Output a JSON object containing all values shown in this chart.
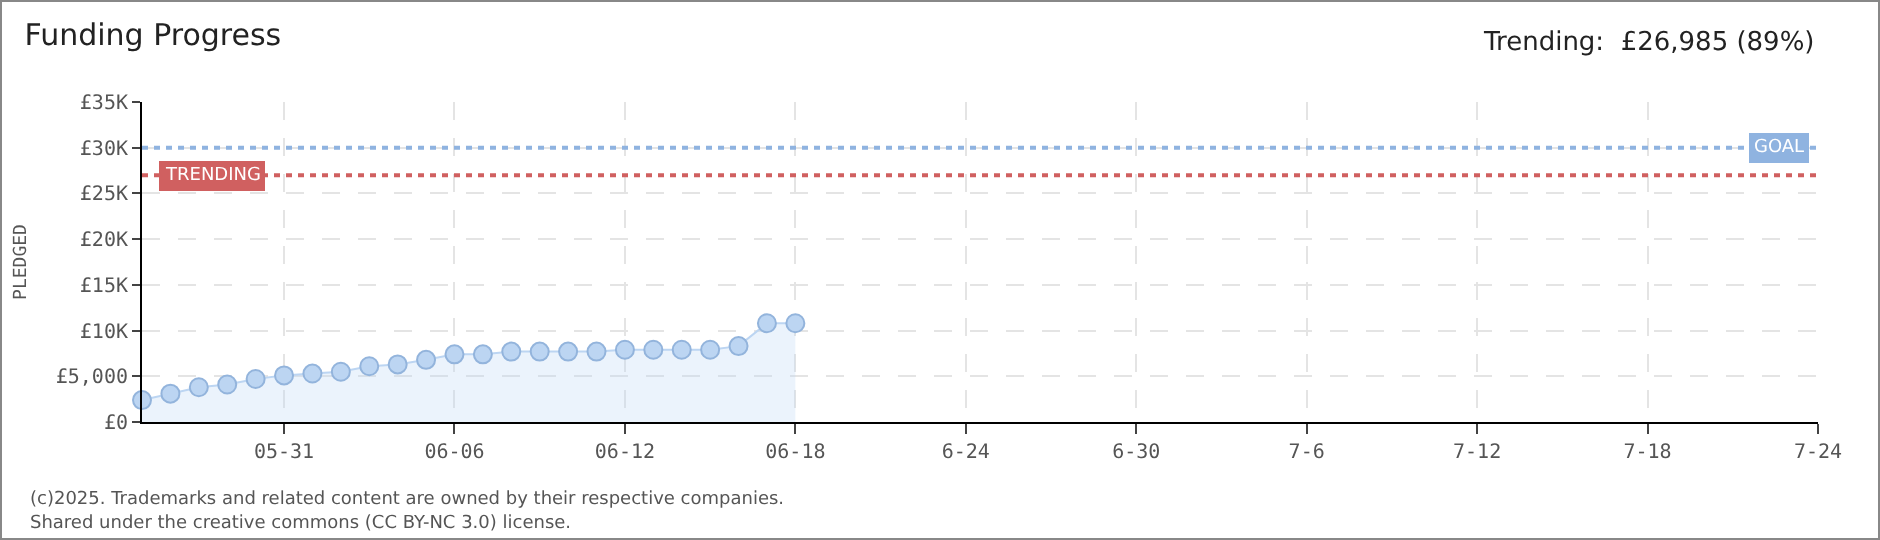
{
  "chart_data": {
    "type": "area",
    "title": "Funding Progress",
    "ylabel": "PLEDGED",
    "annotations": [
      "Trending:  £26,985 (89%)",
      "(c)2025. Trademarks and related content are owned by their respective companies.",
      "Shared under the creative commons (CC BY-NC 3.0) license."
    ],
    "x": [
      "--05-26",
      "--05-27",
      "--05-28",
      "--05-29",
      "--05-30",
      "--05-31",
      "--06-01",
      "--06-02",
      "--06-03",
      "--06-04",
      "--06-05",
      "--06-06",
      "--06-07",
      "--06-08",
      "--06-09",
      "--06-10",
      "--06-11",
      "--06-12",
      "--06-13",
      "--06-14",
      "--06-15",
      "--06-16",
      "--06-17",
      "--06-18"
    ],
    "series": [
      {
        "color": "#bcd5f2",
        "values": [
          2400,
          3100,
          3800,
          4100,
          4700,
          5100,
          5300,
          5500,
          6100,
          6300,
          6800,
          7400,
          7400,
          7700,
          7700,
          7700,
          7700,
          7900,
          7900,
          7900,
          7900,
          8300,
          10800,
          10800
        ]
      }
    ],
    "xlim": [
      "--05-26",
      "--07-24"
    ],
    "xticks": [
      {
        "value": "--05-31",
        "label": "05-31"
      },
      {
        "value": "--06-06",
        "label": "06-06"
      },
      {
        "value": "--06-12",
        "label": "06-12"
      },
      {
        "value": "--06-18",
        "label": "06-18"
      },
      {
        "value": "--06-24",
        "label": "6-24"
      },
      {
        "value": "--06-30",
        "label": "6-30"
      },
      {
        "value": "--07-06",
        "label": "7-6"
      },
      {
        "value": "--07-12",
        "label": "7-12"
      },
      {
        "value": "--07-18",
        "label": "7-18"
      },
      {
        "value": "--07-24",
        "label": "7-24"
      }
    ],
    "ylim": [
      0,
      35000
    ],
    "yticks": [
      {
        "value": 0,
        "label": "£0"
      },
      {
        "value": 5000,
        "label": "£5,000"
      },
      {
        "value": 10000,
        "label": "£10K"
      },
      {
        "value": 15000,
        "label": "£15K"
      },
      {
        "value": 20000,
        "label": "£20K"
      },
      {
        "value": 25000,
        "label": "£25K"
      },
      {
        "value": 30000,
        "label": "£30K"
      },
      {
        "value": 35000,
        "label": "£35K"
      }
    ],
    "ref_lines": [
      {
        "axis": "y",
        "value": 30000,
        "label": "GOAL",
        "color": "#8fb3e0",
        "line_style": "dotted"
      },
      {
        "axis": "y",
        "value": 26985,
        "label": "TRENDING",
        "color": "#d06060",
        "line_style": "dotted"
      }
    ],
    "grid": true,
    "marker": "circle"
  }
}
